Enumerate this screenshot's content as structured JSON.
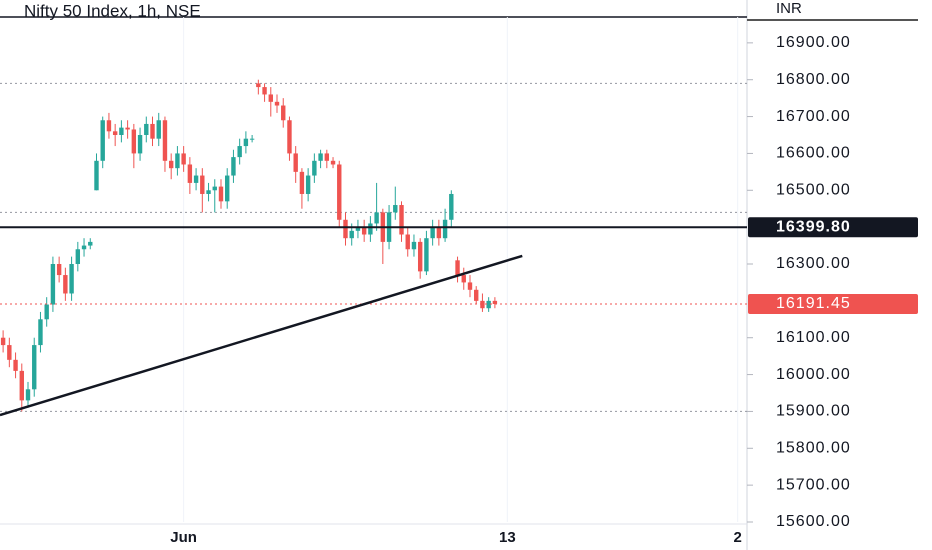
{
  "chart_data": {
    "type": "candlestick",
    "title": "Nifty 50 Index, 1h, NSE",
    "currency": "INR",
    "x": [
      0,
      1,
      2,
      3,
      4,
      5,
      6,
      7,
      8,
      9,
      10,
      11,
      12,
      13,
      14,
      15,
      16,
      17,
      18,
      19,
      20,
      21,
      22,
      23,
      24,
      25,
      26,
      27,
      28,
      29,
      30,
      31,
      32,
      33,
      34,
      35,
      36,
      37,
      38,
      39,
      40,
      41,
      42,
      43,
      44,
      45,
      46,
      47,
      48,
      49,
      50,
      51,
      52,
      53,
      54,
      55,
      56,
      57,
      58,
      59,
      60,
      61,
      62,
      63,
      64,
      65,
      66,
      67,
      68,
      69,
      70,
      71,
      72,
      73,
      74,
      75,
      76,
      77,
      78,
      79
    ],
    "open": [
      16100,
      16080,
      16040,
      16010,
      15930,
      15960,
      16080,
      16150,
      16190,
      16300,
      16270,
      16220,
      16300,
      16340,
      16350,
      16500,
      16580,
      16690,
      16660,
      16650,
      16670,
      16665,
      16600,
      16650,
      16680,
      16640,
      16690,
      16580,
      16560,
      16600,
      16570,
      16520,
      16540,
      16490,
      16500,
      16510,
      16470,
      16540,
      16590,
      16620,
      16640,
      16790,
      16780,
      16760,
      16740,
      16730,
      16690,
      16600,
      16550,
      16490,
      16540,
      16580,
      16600,
      16580,
      16570,
      16420,
      16370,
      16390,
      16400,
      16380,
      16410,
      16440,
      16360,
      16440,
      16460,
      16380,
      16340,
      16360,
      16280,
      16370,
      16400,
      16370,
      16420,
      16310,
      16270,
      16250,
      16230,
      16200,
      16180,
      16200
    ],
    "high": [
      16120,
      16100,
      16060,
      16030,
      15980,
      16100,
      16170,
      16210,
      16320,
      16320,
      16290,
      16320,
      16360,
      16370,
      16370,
      16600,
      16700,
      16710,
      16680,
      16690,
      16690,
      16680,
      16670,
      16700,
      16700,
      16710,
      16700,
      16600,
      16620,
      16620,
      16590,
      16560,
      16560,
      16520,
      16530,
      16530,
      16560,
      16610,
      16640,
      16660,
      16650,
      16800,
      16790,
      16780,
      16760,
      16750,
      16700,
      16620,
      16560,
      16560,
      16600,
      16610,
      16610,
      16590,
      16580,
      16440,
      16410,
      16420,
      16420,
      16430,
      16520,
      16450,
      16460,
      16510,
      16470,
      16400,
      16380,
      16370,
      16390,
      16420,
      16420,
      16450,
      16500,
      16320,
      16290,
      16270,
      16240,
      16220,
      16210,
      16210
    ],
    "low": [
      16060,
      16020,
      15990,
      15900,
      15910,
      15940,
      16060,
      16130,
      16170,
      16250,
      16200,
      16200,
      16280,
      16320,
      16340,
      16500,
      16560,
      16640,
      16620,
      16630,
      16640,
      16560,
      16580,
      16630,
      16620,
      16620,
      16550,
      16530,
      16540,
      16550,
      16490,
      16500,
      16440,
      16470,
      16440,
      16450,
      16450,
      16520,
      16570,
      16600,
      16630,
      16760,
      16740,
      16700,
      16710,
      16670,
      16580,
      16520,
      16450,
      16470,
      16520,
      16560,
      16560,
      16560,
      16400,
      16350,
      16350,
      16370,
      16360,
      16360,
      16390,
      16300,
      16340,
      16420,
      16360,
      16320,
      16320,
      16260,
      16270,
      16350,
      16350,
      16360,
      16400,
      16250,
      16230,
      16210,
      16190,
      16170,
      16170,
      16180
    ],
    "close": [
      16080,
      16040,
      16010,
      15930,
      15960,
      16080,
      16150,
      16190,
      16300,
      16270,
      16220,
      16300,
      16340,
      16350,
      16360,
      16580,
      16690,
      16660,
      16650,
      16670,
      16665,
      16600,
      16650,
      16680,
      16640,
      16690,
      16580,
      16560,
      16600,
      16570,
      16520,
      16540,
      16490,
      16500,
      16510,
      16470,
      16540,
      16590,
      16620,
      16640,
      16640,
      16780,
      16760,
      16740,
      16730,
      16690,
      16600,
      16550,
      16490,
      16540,
      16580,
      16600,
      16580,
      16570,
      16420,
      16370,
      16390,
      16400,
      16380,
      16410,
      16440,
      16360,
      16440,
      16460,
      16380,
      16340,
      16360,
      16280,
      16370,
      16400,
      16370,
      16420,
      16490,
      16270,
      16250,
      16230,
      16200,
      16180,
      16200,
      16191.45
    ],
    "up_color": "#26a69a",
    "down_color": "#ef5350",
    "xlim": [
      -0.5,
      119.5
    ],
    "xticks": [
      {
        "value": 29,
        "label": "Jun"
      },
      {
        "value": 81,
        "label": "13"
      },
      {
        "value": 118,
        "label": "2"
      }
    ],
    "ylim": [
      15600,
      17000
    ],
    "yticks": [
      {
        "value": 15600,
        "label": "15600.00"
      },
      {
        "value": 15700,
        "label": "15700.00"
      },
      {
        "value": 15800,
        "label": "15800.00"
      },
      {
        "value": 15900,
        "label": "15900.00"
      },
      {
        "value": 16000,
        "label": "16000.00"
      },
      {
        "value": 16100,
        "label": "16100.00"
      },
      {
        "value": 16300,
        "label": "16300.00"
      },
      {
        "value": 16500,
        "label": "16500.00"
      },
      {
        "value": 16600,
        "label": "16600.00"
      },
      {
        "value": 16700,
        "label": "16700.00"
      },
      {
        "value": 16800,
        "label": "16800.00"
      },
      {
        "value": 16900,
        "label": "16900.00"
      }
    ],
    "level": {
      "value": 16399.8,
      "label": "16399.80"
    },
    "last_price": {
      "value": 16191.45,
      "label": "16191.45"
    },
    "dotted_levels": [
      16790,
      16440,
      15900
    ],
    "trend_line": {
      "x": [
        -0.5,
        83.4
      ],
      "y": [
        15890,
        16322
      ]
    },
    "grid": false
  }
}
